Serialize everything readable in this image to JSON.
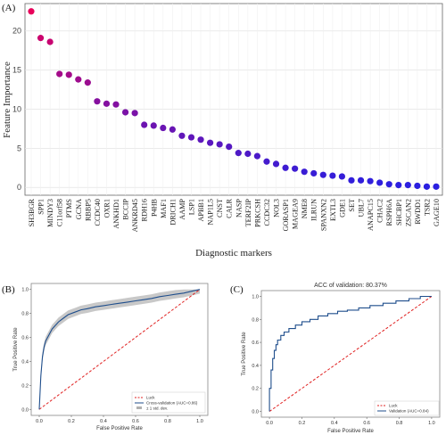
{
  "chart_data": [
    {
      "type": "scatter",
      "panel_label": "(A)",
      "title": "",
      "xlabel": "Diagnostic markers",
      "ylabel": "Feature Importance",
      "ylim": [
        -1,
        23.5
      ],
      "yticks": [
        0,
        5,
        10,
        15,
        20
      ],
      "grid": true,
      "color_high": "#e8005a",
      "color_low": "#2a1fe0",
      "categories": [
        "SH3BGR",
        "SPP1",
        "MINDY3",
        "C11orf58",
        "PTMS",
        "GCNA",
        "RBBP5",
        "CCDC40",
        "OXR1",
        "ANKHD1",
        "BCCIP",
        "ANKRD45",
        "RDH16",
        "P4HB",
        "MAF1",
        "DRICH1",
        "AAMP",
        "LSP1",
        "APBB1",
        "NAP1L5",
        "CNST",
        "CALR",
        "NASP",
        "TERF2IP",
        "PRKCSH",
        "CCDC32",
        "NOL3",
        "GORASP1",
        "MAGEA9",
        "NME8",
        "ILRUN",
        "SPANXN2",
        "EXTL3",
        "GDE1",
        "SET",
        "UBL7",
        "ANAPC15",
        "CHAC2",
        "RSPH6A",
        "SHCBP1",
        "ZSCAN2",
        "RWDD1",
        "TSR2",
        "GAGE10"
      ],
      "values": [
        22.5,
        19.1,
        18.6,
        14.5,
        14.4,
        13.8,
        13.4,
        11.0,
        10.7,
        10.6,
        9.6,
        9.5,
        8.0,
        7.9,
        7.6,
        7.4,
        6.6,
        6.4,
        6.1,
        5.7,
        5.5,
        5.2,
        4.4,
        4.3,
        4.0,
        3.3,
        3.0,
        2.5,
        2.4,
        2.0,
        1.8,
        1.6,
        1.5,
        1.4,
        0.9,
        0.9,
        0.8,
        0.6,
        0.4,
        0.3,
        0.3,
        0.2,
        0.1,
        0.1
      ]
    },
    {
      "type": "line",
      "panel_label": "(B)",
      "title": "",
      "xlabel": "False Positive Rate",
      "ylabel": "True Positive Rate",
      "xlim": [
        -0.05,
        1.05
      ],
      "ylim": [
        -0.05,
        1.05
      ],
      "ticks": [
        0.0,
        0.2,
        0.4,
        0.6,
        0.8,
        1.0
      ],
      "tick_labels": [
        "0.0",
        "0.2",
        "0.4",
        "0.6",
        "0.8",
        "1.0"
      ],
      "legend_position": "bottom-right",
      "series": [
        {
          "name": "Luck",
          "style": "dashed",
          "color": "#e02020",
          "x": [
            0,
            1
          ],
          "y": [
            0,
            1
          ]
        },
        {
          "name": "Cross-validation (AUC=0.86)",
          "style": "solid",
          "color": "#1f4e8c",
          "x": [
            0.0,
            0.01,
            0.02,
            0.03,
            0.04,
            0.06,
            0.08,
            0.1,
            0.12,
            0.15,
            0.18,
            0.22,
            0.26,
            0.3,
            0.35,
            0.4,
            0.45,
            0.5,
            0.55,
            0.6,
            0.65,
            0.7,
            0.75,
            0.8,
            0.85,
            0.9,
            0.95,
            1.0
          ],
          "y": [
            0.0,
            0.28,
            0.44,
            0.52,
            0.57,
            0.62,
            0.67,
            0.7,
            0.73,
            0.76,
            0.79,
            0.81,
            0.83,
            0.84,
            0.855,
            0.865,
            0.875,
            0.885,
            0.895,
            0.905,
            0.915,
            0.925,
            0.94,
            0.95,
            0.96,
            0.97,
            0.985,
            1.0
          ]
        },
        {
          "name": "± 1 std. dev.",
          "style": "band",
          "color": "#b0b0b0",
          "halfwidth": 0.035
        }
      ]
    },
    {
      "type": "line",
      "panel_label": "(C)",
      "title": "ACC of validation: 80.37%",
      "xlabel": "False Positive Rate",
      "ylabel": "True Positive Rate",
      "xlim": [
        -0.05,
        1.05
      ],
      "ylim": [
        -0.05,
        1.05
      ],
      "ticks": [
        0.0,
        0.2,
        0.4,
        0.6,
        0.8,
        1.0
      ],
      "tick_labels": [
        "0.0",
        "0.2",
        "0.4",
        "0.6",
        "0.8",
        "1.0"
      ],
      "legend_position": "bottom-right",
      "series": [
        {
          "name": "Luck",
          "style": "dashed",
          "color": "#e02020",
          "x": [
            0,
            1
          ],
          "y": [
            0,
            1
          ]
        },
        {
          "name": "Validation (AUC=0.84)",
          "style": "step",
          "color": "#1f4e8c",
          "x": [
            0.0,
            0.0,
            0.01,
            0.01,
            0.02,
            0.02,
            0.03,
            0.03,
            0.04,
            0.04,
            0.05,
            0.05,
            0.07,
            0.07,
            0.09,
            0.09,
            0.12,
            0.12,
            0.16,
            0.16,
            0.2,
            0.2,
            0.25,
            0.25,
            0.3,
            0.3,
            0.36,
            0.36,
            0.42,
            0.42,
            0.48,
            0.48,
            0.55,
            0.55,
            0.62,
            0.62,
            0.7,
            0.7,
            0.78,
            0.78,
            0.86,
            0.86,
            0.93,
            0.93,
            1.0
          ],
          "y": [
            0.0,
            0.2,
            0.2,
            0.36,
            0.36,
            0.46,
            0.46,
            0.53,
            0.53,
            0.58,
            0.58,
            0.62,
            0.62,
            0.66,
            0.66,
            0.69,
            0.69,
            0.72,
            0.72,
            0.75,
            0.75,
            0.78,
            0.78,
            0.8,
            0.8,
            0.83,
            0.83,
            0.85,
            0.85,
            0.87,
            0.87,
            0.88,
            0.88,
            0.9,
            0.9,
            0.92,
            0.92,
            0.94,
            0.94,
            0.96,
            0.96,
            0.98,
            0.98,
            1.0,
            1.0
          ]
        }
      ]
    }
  ]
}
